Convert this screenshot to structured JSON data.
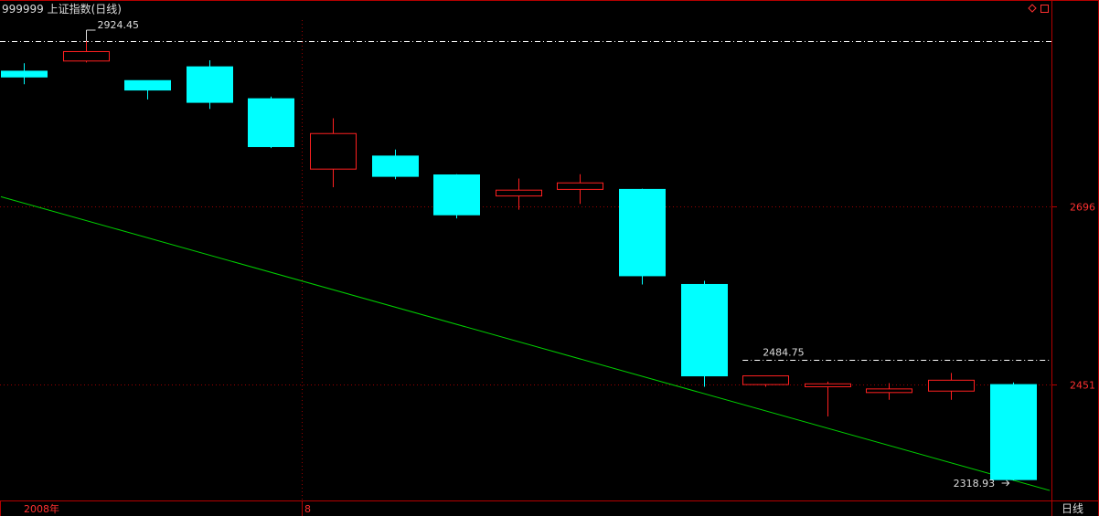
{
  "header": {
    "title": "999999 上证指数(日线)",
    "restore_icon": "diamond-icon",
    "maximize_icon": "square-icon"
  },
  "colors": {
    "background": "#000000",
    "frame": "#b40000",
    "grid": "#9a0000",
    "up": "#ff2020",
    "down": "#00ffff",
    "trend": "#00d000",
    "text": "#dddddd",
    "axis_label": "#ff3030"
  },
  "chart_data": {
    "type": "candlestick",
    "period_label": "日线",
    "x_labels": [
      {
        "index": 0,
        "text": "2008年"
      },
      {
        "index": 5,
        "text": "8"
      }
    ],
    "y_ticks": [
      2696,
      2451
    ],
    "high_marker": {
      "index": 1,
      "value": 2924.45,
      "label": "2924.45"
    },
    "low_marker": {
      "index": 16,
      "value": 2318.93,
      "label": "2318.93"
    },
    "ref_lines": [
      {
        "value": 2924.45,
        "start_index": 0
      },
      {
        "value": 2484.75,
        "start_index": 12,
        "label": "2484.75"
      }
    ],
    "trendline": {
      "from": {
        "index": -0.37,
        "value": 2710
      },
      "to": {
        "index": 16.6,
        "value": 2305
      }
    },
    "candles": [
      {
        "o": 2883,
        "h": 2894,
        "l": 2865,
        "c": 2875
      },
      {
        "o": 2897,
        "h": 2924.45,
        "l": 2895,
        "c": 2910
      },
      {
        "o": 2870,
        "h": 2870,
        "l": 2844,
        "c": 2857
      },
      {
        "o": 2889,
        "h": 2898,
        "l": 2831,
        "c": 2840
      },
      {
        "o": 2845,
        "h": 2848,
        "l": 2777,
        "c": 2779
      },
      {
        "o": 2748,
        "h": 2818,
        "l": 2723,
        "c": 2797
      },
      {
        "o": 2766,
        "h": 2775,
        "l": 2734,
        "c": 2738
      },
      {
        "o": 2740,
        "h": 2741,
        "l": 2680,
        "c": 2685
      },
      {
        "o": 2711,
        "h": 2735,
        "l": 2692,
        "c": 2719
      },
      {
        "o": 2720,
        "h": 2741,
        "l": 2700,
        "c": 2729
      },
      {
        "o": 2720,
        "h": 2721,
        "l": 2589,
        "c": 2601
      },
      {
        "o": 2589,
        "h": 2594,
        "l": 2448,
        "c": 2463
      },
      {
        "o": 2451,
        "h": 2463,
        "l": 2448,
        "c": 2463
      },
      {
        "o": 2448,
        "h": 2455,
        "l": 2407,
        "c": 2452
      },
      {
        "o": 2440,
        "h": 2453,
        "l": 2430,
        "c": 2445
      },
      {
        "o": 2442,
        "h": 2467,
        "l": 2430,
        "c": 2457
      },
      {
        "o": 2451,
        "h": 2454,
        "l": 2318.93,
        "c": 2320
      }
    ]
  }
}
